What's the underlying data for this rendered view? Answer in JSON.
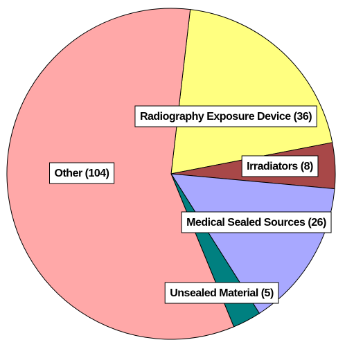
{
  "chart_data": {
    "type": "pie",
    "values": [
      36,
      8,
      26,
      5,
      104
    ],
    "value_labels": [
      "Radiography Exposure Device (36)",
      "Irradiators (8)",
      "Medical Sealed Sources (26)",
      "Unsealed Material (5)",
      "Other (104)"
    ],
    "colors": [
      "#ffff80",
      "#a84848",
      "#a8a8ff",
      "#008080",
      "#ffa8a8"
    ]
  }
}
